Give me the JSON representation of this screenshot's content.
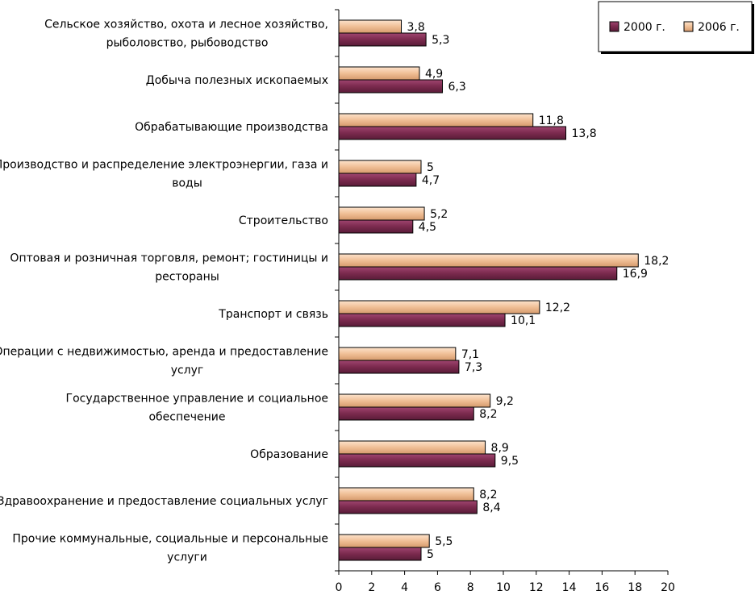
{
  "chart_data": {
    "type": "bar",
    "orientation": "horizontal",
    "categories": [
      [
        "Сельское хозяйство, охота и лесное хозяйство,",
        "рыболовство, рыбоводство"
      ],
      [
        "Добыча полезных ископаемых"
      ],
      [
        "Обрабатывающие производства"
      ],
      [
        "Производство и распределение электроэнергии, газа и",
        "воды"
      ],
      [
        "Строительство"
      ],
      [
        "Оптовая и розничная торговля, ремонт; гостиницы и",
        "рестораны"
      ],
      [
        "Транспорт и связь"
      ],
      [
        "Операции с недвижимостью, аренда и предоставление",
        "услуг"
      ],
      [
        "Государственное управление и социальное",
        "обеспечение"
      ],
      [
        "Образование"
      ],
      [
        "Здравоохранение и предоставление социальных услуг"
      ],
      [
        "Прочие коммунальные, социальные и персональные",
        "услуги"
      ]
    ],
    "series": [
      {
        "name": "2000 г.",
        "color": "#7b2a4e",
        "values": [
          5.3,
          6.3,
          13.8,
          4.7,
          4.5,
          16.9,
          10.1,
          7.3,
          8.2,
          9.5,
          8.4,
          5
        ],
        "labels": [
          "5,3",
          "6,3",
          "13,8",
          "4,7",
          "4,5",
          "16,9",
          "10,1",
          "7,3",
          "8,2",
          "9,5",
          "8,4",
          "5"
        ]
      },
      {
        "name": "2006 г.",
        "color": "#f3c8a4",
        "values": [
          3.8,
          4.9,
          11.8,
          5,
          5.2,
          18.2,
          12.2,
          7.1,
          9.2,
          8.9,
          8.2,
          5.5
        ],
        "labels": [
          "3,8",
          "4,9",
          "11,8",
          "5",
          "5,2",
          "18,2",
          "12,2",
          "7,1",
          "9,2",
          "8,9",
          "8,2",
          "5,5"
        ]
      }
    ],
    "xlim": [
      0,
      20
    ],
    "ticks": [
      "0",
      "2",
      "4",
      "6",
      "8",
      "10",
      "12",
      "14",
      "16",
      "18",
      "20"
    ],
    "legend_position": "top-right",
    "grid": false
  }
}
